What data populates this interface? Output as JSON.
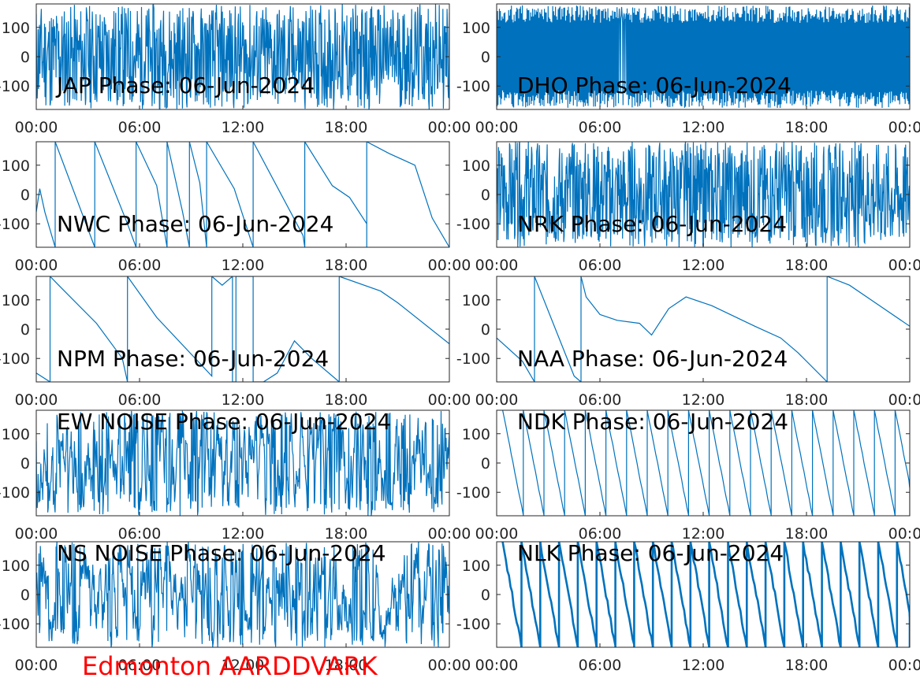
{
  "figure_title": "Edmonton AARDDVARK",
  "colors": {
    "trace": "#0072bd",
    "footer": "#ff0000",
    "axes": "#262626"
  },
  "chart_data": [
    {
      "type": "line",
      "title": "JAP Phase: 06-Jun-2024",
      "pattern": "noise-full",
      "seed": 11,
      "x_ticks": [
        "00:00",
        "06:00",
        "12:00",
        "18:00",
        "00:00"
      ],
      "y_ticks": [
        -100,
        0,
        100
      ],
      "ylim": [
        -180,
        180
      ],
      "xlim_hours": [
        0,
        24
      ]
    },
    {
      "type": "line",
      "title": "DHO Phase: 06-Jun-2024",
      "pattern": "dense-sawtooth",
      "seed": 12,
      "x_ticks": [
        "00:00",
        "06:00",
        "12:00",
        "18:00",
        "00:00"
      ],
      "y_ticks": [
        -100,
        0,
        100
      ],
      "ylim": [
        -180,
        180
      ],
      "xlim_hours": [
        0,
        24
      ]
    },
    {
      "type": "line",
      "title": "NWC Phase: 06-Jun-2024",
      "pattern": "wraps",
      "seed": 13,
      "x_ticks": [
        "00:00",
        "06:00",
        "12:00",
        "18:00",
        "00:00"
      ],
      "y_ticks": [
        -100,
        0,
        100
      ],
      "ylim": [
        -180,
        180
      ],
      "xlim_hours": [
        0,
        24
      ],
      "points": [
        [
          0,
          -60
        ],
        [
          0.2,
          20
        ],
        [
          0.5,
          -60
        ],
        [
          1.1,
          -180
        ],
        [
          1.1,
          180
        ],
        [
          3.4,
          -180
        ],
        [
          3.4,
          180
        ],
        [
          5.3,
          -100
        ],
        [
          5.8,
          -180
        ],
        [
          5.8,
          180
        ],
        [
          7.0,
          30
        ],
        [
          7.6,
          -180
        ],
        [
          7.6,
          180
        ],
        [
          8.5,
          -60
        ],
        [
          8.9,
          -180
        ],
        [
          8.9,
          180
        ],
        [
          9.5,
          40
        ],
        [
          9.9,
          -180
        ],
        [
          9.9,
          180
        ],
        [
          11.5,
          20
        ],
        [
          12.6,
          -180
        ],
        [
          12.6,
          180
        ],
        [
          15.5,
          -140
        ],
        [
          15.6,
          -180
        ],
        [
          15.6,
          180
        ],
        [
          17.2,
          30
        ],
        [
          18.2,
          -10
        ],
        [
          19.2,
          -100
        ],
        [
          19.2,
          -180
        ],
        [
          19.2,
          180
        ],
        [
          20.5,
          140
        ],
        [
          22.0,
          100
        ],
        [
          23.0,
          -80
        ],
        [
          24,
          -180
        ]
      ]
    },
    {
      "type": "line",
      "title": "NRK Phase: 06-Jun-2024",
      "pattern": "noise-full",
      "seed": 14,
      "x_ticks": [
        "00:00",
        "06:00",
        "12:00",
        "18:00",
        "00:00"
      ],
      "y_ticks": [
        -100,
        0,
        100
      ],
      "ylim": [
        -180,
        180
      ],
      "xlim_hours": [
        0,
        24
      ]
    },
    {
      "type": "line",
      "title": "NPM Phase: 06-Jun-2024",
      "pattern": "wraps",
      "seed": 15,
      "x_ticks": [
        "00:00",
        "06:00",
        "12:00",
        "18:00",
        "00:00"
      ],
      "y_ticks": [
        -100,
        0,
        100
      ],
      "ylim": [
        -180,
        180
      ],
      "xlim_hours": [
        0,
        24
      ],
      "points": [
        [
          0,
          -150
        ],
        [
          0.8,
          -180
        ],
        [
          0.8,
          180
        ],
        [
          1.3,
          150
        ],
        [
          3.5,
          20
        ],
        [
          5.0,
          -100
        ],
        [
          5.3,
          -180
        ],
        [
          5.3,
          180
        ],
        [
          7.0,
          40
        ],
        [
          10.2,
          -160
        ],
        [
          10.2,
          180
        ],
        [
          10.8,
          150
        ],
        [
          11.4,
          180
        ],
        [
          11.4,
          -180
        ],
        [
          11.6,
          -180
        ],
        [
          11.6,
          180
        ],
        [
          12.6,
          180
        ],
        [
          12.6,
          -180
        ],
        [
          13.2,
          -180
        ],
        [
          14.0,
          -150
        ],
        [
          15.0,
          -40
        ],
        [
          16.0,
          -100
        ],
        [
          17.6,
          -180
        ],
        [
          17.6,
          180
        ],
        [
          20.0,
          130
        ],
        [
          21.0,
          90
        ],
        [
          24,
          -50
        ]
      ]
    },
    {
      "type": "line",
      "title": "NAA Phase: 06-Jun-2024",
      "pattern": "wraps",
      "seed": 16,
      "x_ticks": [
        "00:00",
        "06:00",
        "12:00",
        "18:00",
        "00:00"
      ],
      "y_ticks": [
        -100,
        0,
        100
      ],
      "ylim": [
        -180,
        180
      ],
      "xlim_hours": [
        0,
        24
      ],
      "points": [
        [
          0,
          -30
        ],
        [
          1.5,
          -110
        ],
        [
          2.2,
          -180
        ],
        [
          2.2,
          180
        ],
        [
          4.5,
          -160
        ],
        [
          4.9,
          -180
        ],
        [
          4.9,
          180
        ],
        [
          5.2,
          110
        ],
        [
          6.0,
          50
        ],
        [
          7.0,
          30
        ],
        [
          8.3,
          20
        ],
        [
          9.0,
          -20
        ],
        [
          10.0,
          70
        ],
        [
          11.0,
          110
        ],
        [
          12.5,
          80
        ],
        [
          15.0,
          10
        ],
        [
          16.5,
          -30
        ],
        [
          17.5,
          -80
        ],
        [
          19.2,
          -180
        ],
        [
          19.2,
          180
        ],
        [
          20.5,
          150
        ],
        [
          24,
          10
        ]
      ]
    },
    {
      "type": "line",
      "title": "EW NOISE Phase: 06-Jun-2024",
      "pattern": "noise-medium",
      "seed": 17,
      "x_ticks": [
        "00:00",
        "06:00",
        "12:00",
        "18:00",
        "00:00"
      ],
      "y_ticks": [
        -100,
        0,
        100
      ],
      "ylim": [
        -180,
        180
      ],
      "xlim_hours": [
        0,
        24
      ]
    },
    {
      "type": "line",
      "title": "NDK Phase: 06-Jun-2024",
      "pattern": "sawtooth-regular",
      "seed": 18,
      "cycles": 20,
      "x_ticks": [
        "00:00",
        "06:00",
        "12:00",
        "18:00",
        "00:00"
      ],
      "y_ticks": [
        -100,
        0,
        100
      ],
      "ylim": [
        -180,
        180
      ],
      "xlim_hours": [
        0,
        24
      ]
    },
    {
      "type": "line",
      "title": "NS NOISE Phase: 06-Jun-2024",
      "pattern": "noise-medium",
      "seed": 19,
      "x_ticks": [
        "00:00",
        "06:00",
        "12:00",
        "18:00",
        "00:00"
      ],
      "y_ticks": [
        -100,
        0,
        100
      ],
      "ylim": [
        -180,
        180
      ],
      "xlim_hours": [
        0,
        24
      ]
    },
    {
      "type": "line",
      "title": "NLK Phase: 06-Jun-2024",
      "pattern": "sawtooth-thick",
      "seed": 20,
      "cycles": 22,
      "x_ticks": [
        "00:00",
        "06:00",
        "12:00",
        "18:00",
        "00:00"
      ],
      "y_ticks": [
        -100,
        0,
        100
      ],
      "ylim": [
        -180,
        180
      ],
      "xlim_hours": [
        0,
        24
      ]
    }
  ]
}
